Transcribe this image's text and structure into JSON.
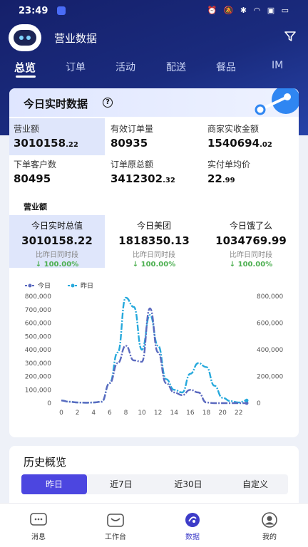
{
  "status_bar": {
    "time": "23:49",
    "icons": "⏰ 🔕 ✱ ◠ ▣ ▭"
  },
  "header": {
    "title": "营业数据"
  },
  "tabs": [
    "总览",
    "订单",
    "活动",
    "配送",
    "餐品",
    "IM"
  ],
  "realtime": {
    "title": "今日实时数据",
    "metrics": [
      {
        "label": "营业额",
        "int": "3010158",
        "dec": ".22"
      },
      {
        "label": "有效订单量",
        "int": "80935",
        "dec": ""
      },
      {
        "label": "商家实收金额",
        "int": "1540694",
        "dec": ".02"
      },
      {
        "label": "下单客户数",
        "int": "80495",
        "dec": ""
      },
      {
        "label": "订单原总额",
        "int": "3412302",
        "dec": ".32"
      },
      {
        "label": "实付单均价",
        "int": "22",
        "dec": ".99"
      }
    ],
    "section_label": "营业额",
    "today": [
      {
        "label": "今日实时总值",
        "value": "3010158.22",
        "compare": "比昨日同时段",
        "pct": "↓ 100.00%"
      },
      {
        "label": "今日美团",
        "value": "1818350.13",
        "compare": "比昨日同时段",
        "pct": "↓ 100.00%"
      },
      {
        "label": "今日饿了么",
        "value": "1034769.99",
        "compare": "比昨日同时段",
        "pct": "↓ 100.00%"
      }
    ]
  },
  "chart_data": {
    "type": "line",
    "x": [
      0,
      1,
      2,
      3,
      4,
      5,
      6,
      7,
      8,
      9,
      10,
      11,
      12,
      13,
      14,
      15,
      16,
      17,
      18,
      19,
      20,
      21,
      22,
      23
    ],
    "x_ticks": [
      "0",
      "2",
      "4",
      "6",
      "8",
      "10",
      "12",
      "14",
      "16",
      "18",
      "20",
      "22"
    ],
    "series": [
      {
        "name": "今日",
        "color": "#5b6abf",
        "axis": "left",
        "values": [
          20000,
          10000,
          5000,
          3000,
          5000,
          10000,
          150000,
          300000,
          430000,
          320000,
          310000,
          710000,
          380000,
          150000,
          80000,
          60000,
          100000,
          80000,
          5000,
          0,
          0,
          0,
          0,
          0
        ]
      },
      {
        "name": "昨日",
        "color": "#27a9dc",
        "axis": "right",
        "values": [
          20000,
          10000,
          5000,
          3000,
          5000,
          10000,
          150000,
          380000,
          790000,
          720000,
          400000,
          660000,
          430000,
          180000,
          100000,
          80000,
          220000,
          300000,
          270000,
          130000,
          40000,
          15000,
          5000,
          20000
        ]
      }
    ],
    "y_left": {
      "ticks": [
        "0",
        "100,000",
        "200,000",
        "300,000",
        "400,000",
        "500,000",
        "600,000",
        "700,000",
        "800,000"
      ],
      "max": 800000
    },
    "y_right": {
      "ticks": [
        "0",
        "200,000",
        "400,000",
        "600,000",
        "800,000"
      ],
      "max": 800000
    },
    "legend": "top-left"
  },
  "history": {
    "title": "历史概览",
    "options": [
      "昨日",
      "近7日",
      "近30日",
      "自定义"
    ]
  },
  "bottom_nav": [
    "消息",
    "工作台",
    "数据",
    "我的"
  ]
}
